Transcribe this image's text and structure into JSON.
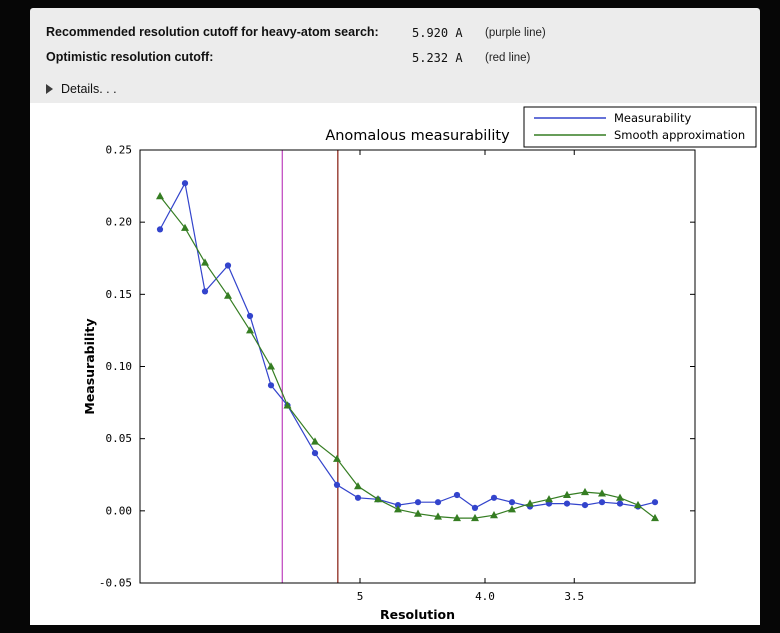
{
  "info_panel": {
    "rows": [
      {
        "label": "Recommended resolution cutoff for heavy-atom search:",
        "value": "5.920 A",
        "note": "(purple line)"
      },
      {
        "label": "Optimistic resolution cutoff:",
        "value": "5.232 A",
        "note": "(red line)"
      }
    ],
    "details": {
      "label": "Details. . ."
    }
  },
  "chart_data": {
    "type": "line",
    "title": "Anomalous measurability",
    "xlabel": "Resolution",
    "ylabel": "Measurability",
    "grid": false,
    "xlim": [
      0.112,
      0.334
    ],
    "ylim": [
      -0.05,
      0.25
    ],
    "x": [
      0.12,
      0.13,
      0.138,
      0.1472,
      0.156,
      0.1644,
      0.171,
      0.182,
      0.1908,
      0.1992,
      0.2072,
      0.2152,
      0.2232,
      0.2312,
      0.2388,
      0.246,
      0.2536,
      0.2608,
      0.268,
      0.2756,
      0.2828,
      0.29,
      0.2968,
      0.304,
      0.3112,
      0.318
    ],
    "series": [
      {
        "name": "Measurability",
        "color": "#3344cc",
        "marker": "circle",
        "values": [
          0.195,
          0.227,
          0.152,
          0.17,
          0.135,
          0.087,
          0.073,
          0.04,
          0.018,
          0.009,
          0.008,
          0.004,
          0.006,
          0.006,
          0.011,
          0.002,
          0.009,
          0.006,
          0.003,
          0.005,
          0.005,
          0.004,
          0.006,
          0.005,
          0.003,
          0.006
        ]
      },
      {
        "name": "Smooth approximation",
        "color": "#357d22",
        "marker": "triangle_up",
        "values": [
          0.218,
          0.196,
          0.172,
          0.149,
          0.125,
          0.1,
          0.073,
          0.048,
          0.036,
          0.017,
          0.008,
          0.001,
          -0.002,
          -0.004,
          -0.005,
          -0.005,
          -0.003,
          0.001,
          0.005,
          0.008,
          0.011,
          0.013,
          0.012,
          0.009,
          0.004,
          -0.005
        ]
      }
    ],
    "xticks": [
      {
        "v": 0.2,
        "label": "5"
      },
      {
        "v": 0.25,
        "label": "4.0"
      },
      {
        "v": 0.2857,
        "label": "3.5"
      }
    ],
    "yticks": [
      {
        "v": -0.05,
        "label": "-0.05"
      },
      {
        "v": 0.0,
        "label": "0.00"
      },
      {
        "v": 0.05,
        "label": "0.05"
      },
      {
        "v": 0.1,
        "label": "0.10"
      },
      {
        "v": 0.15,
        "label": "0.15"
      },
      {
        "v": 0.2,
        "label": "0.20"
      },
      {
        "v": 0.25,
        "label": "0.25"
      }
    ],
    "vlines": [
      {
        "v": 0.16892,
        "color": "#c24fc2",
        "name": "purple-cutoff-line",
        "resolution_label": "5.920 A"
      },
      {
        "v": 0.19113,
        "color": "#8e2b20",
        "name": "red-cutoff-line",
        "resolution_label": "5.232 A"
      }
    ],
    "legend": {
      "position": "upper right",
      "entries": [
        "Measurability",
        "Smooth approximation"
      ]
    }
  },
  "colors": {
    "window_bg": "#ececec",
    "figure_bg": "#ffffff",
    "frame_bg": "#060606",
    "text": "#111111"
  }
}
